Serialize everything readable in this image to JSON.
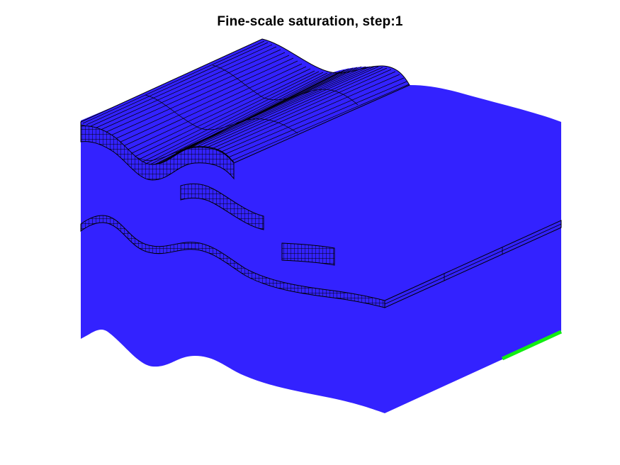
{
  "figure": {
    "title": "Fine-scale saturation, step:1"
  },
  "colors": {
    "background": "#ffffff",
    "fluid": "#3322ff",
    "grid_line": "#000000",
    "injector_edge": "#11ee11"
  }
}
